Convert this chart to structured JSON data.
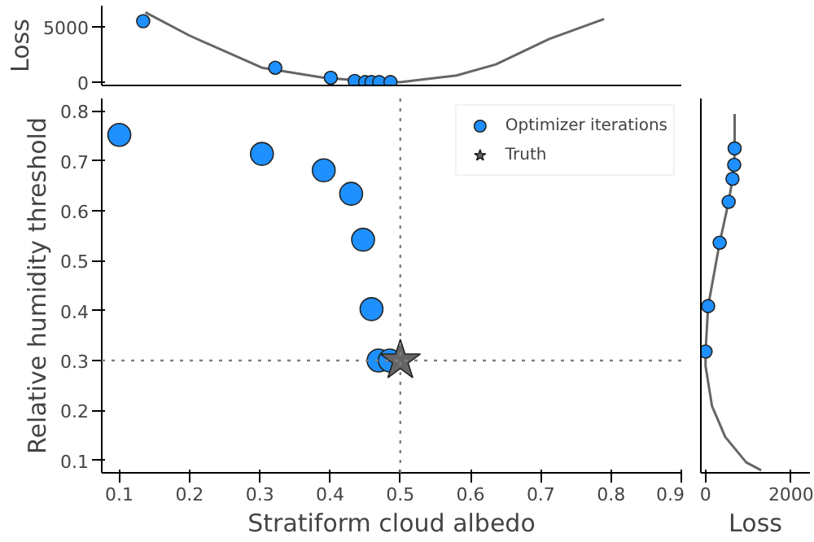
{
  "chart_data": [
    {
      "type": "line",
      "ylabel": "Loss",
      "xlim": [
        0.075,
        0.9
      ],
      "ylim": [
        -300,
        6900
      ],
      "yticks": [
        0,
        5000
      ],
      "tick_labels": "y",
      "grid": false,
      "series": [
        {
          "type": "line",
          "color": "#666666",
          "x": [
            0.137,
            0.2,
            0.303,
            0.391,
            0.45,
            0.5,
            0.58,
            0.636,
            0.712,
            0.79
          ],
          "values": [
            6300,
            4200,
            1300,
            400,
            100,
            0,
            600,
            1600,
            3900,
            5700
          ],
          "marker": "none"
        },
        {
          "type": "scatter",
          "color": "#1e90ff",
          "x": [
            0.134,
            0.322,
            0.401,
            0.435,
            0.45,
            0.459,
            0.47,
            0.486
          ],
          "values": [
            5500,
            1300,
            400,
            100,
            0,
            0,
            0,
            0
          ],
          "marker": "circle"
        }
      ]
    },
    {
      "type": "scatter",
      "xlabel": "Stratiform cloud albedo",
      "ylabel": "Relative humidity threshold",
      "xlim": [
        0.075,
        0.9
      ],
      "ylim": [
        0.075,
        0.825
      ],
      "xticks": [
        0.1,
        0.2,
        0.3,
        0.4,
        0.5,
        0.6,
        0.7,
        0.8,
        0.9
      ],
      "yticks": [
        0.1,
        0.2,
        0.3,
        0.4,
        0.5,
        0.6,
        0.7,
        0.8
      ],
      "grid": false,
      "legend": "top right",
      "ref_lines": [
        {
          "axis": "x",
          "value": 0.5,
          "color": "#808080",
          "line_style": "dotted"
        },
        {
          "axis": "y",
          "value": 0.3,
          "color": "#808080",
          "line_style": "dotted"
        }
      ],
      "series": [
        {
          "name": "Optimizer iterations",
          "color": "#1e90ff",
          "marker": "circle",
          "x": [
            0.1,
            0.303,
            0.391,
            0.43,
            0.447,
            0.459,
            0.469,
            0.485
          ],
          "values": [
            0.752,
            0.714,
            0.681,
            0.634,
            0.542,
            0.403,
            0.3,
            0.3
          ]
        },
        {
          "name": "Truth",
          "color": "#666666",
          "marker": "star",
          "x": [
            0.5
          ],
          "values": [
            0.3
          ]
        }
      ]
    },
    {
      "type": "line",
      "orientation": "horizontal",
      "xlabel": "Loss",
      "xlim": [
        -110,
        2440
      ],
      "xticks": [
        0,
        2000
      ],
      "ylim": [
        0.075,
        0.825
      ],
      "tick_labels": "x",
      "grid": false,
      "series": [
        {
          "type": "line",
          "color": "#666666",
          "marker": "none",
          "x": [
            0.794,
            0.725,
            0.692,
            0.664,
            0.618,
            0.536,
            0.409,
            0.318,
            0.289,
            0.209,
            0.147,
            0.096,
            0.08
          ],
          "values": [
            680,
            680,
            670,
            630,
            540,
            330,
            60,
            0,
            0,
            150,
            460,
            950,
            1300
          ]
        },
        {
          "type": "scatter",
          "color": "#1e90ff",
          "marker": "circle",
          "x": [
            0.725,
            0.692,
            0.664,
            0.618,
            0.536,
            0.409,
            0.318
          ],
          "values": [
            680,
            670,
            630,
            540,
            330,
            60,
            0
          ]
        }
      ]
    }
  ]
}
